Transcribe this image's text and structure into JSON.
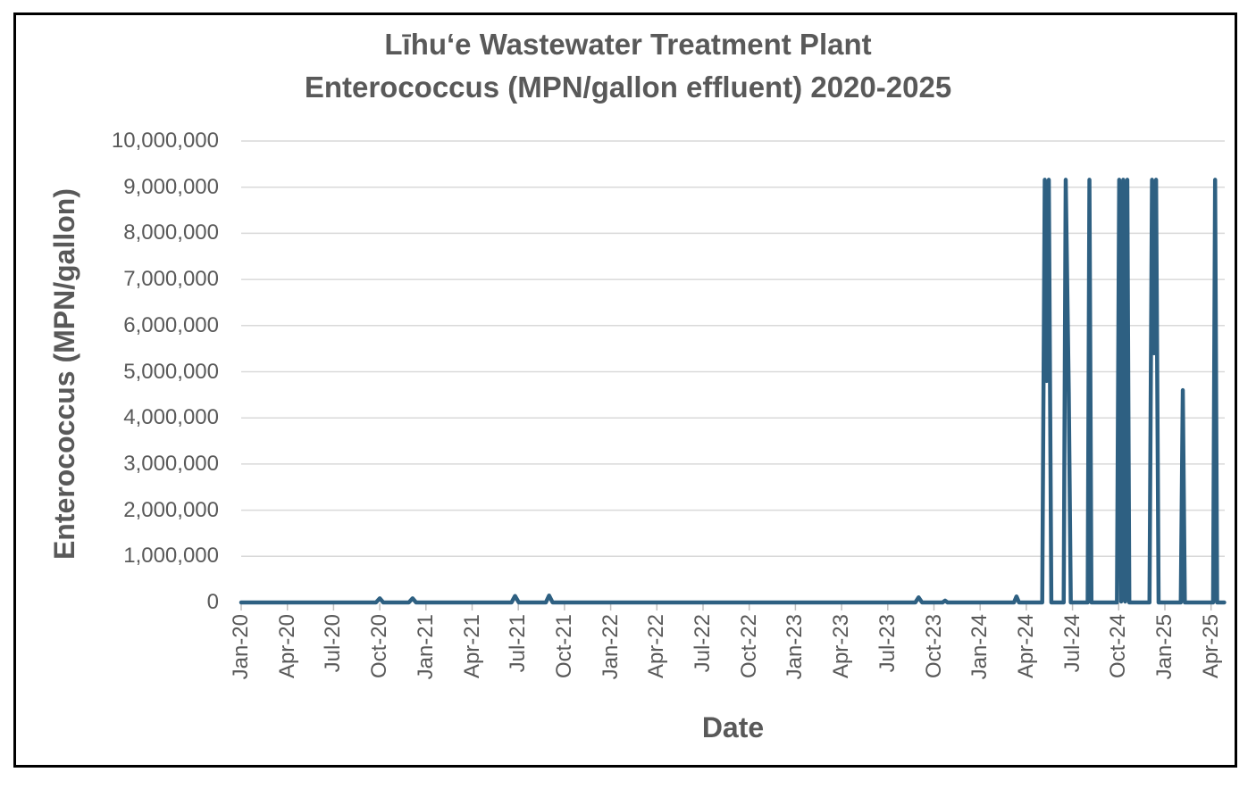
{
  "chart_title": {
    "line1": "Līhuʻe Wastewater Treatment Plant",
    "line2": "Enterococcus (MPN/gallon effluent) 2020-2025"
  },
  "y_axis": {
    "title": "Enterococcus (MPN/gallon)",
    "tick_labels": [
      "0",
      "1,000,000",
      "2,000,000",
      "3,000,000",
      "4,000,000",
      "5,000,000",
      "6,000,000",
      "7,000,000",
      "8,000,000",
      "9,000,000",
      "10,000,000"
    ],
    "tick_values": [
      0,
      1000000,
      2000000,
      3000000,
      4000000,
      5000000,
      6000000,
      7000000,
      8000000,
      9000000,
      10000000
    ]
  },
  "x_axis": {
    "title": "Date",
    "tick_labels": [
      "Jan-20",
      "Apr-20",
      "Jul-20",
      "Oct-20",
      "Jan-21",
      "Apr-21",
      "Jul-21",
      "Oct-21",
      "Jan-22",
      "Apr-22",
      "Jul-22",
      "Oct-22",
      "Jan-23",
      "Apr-23",
      "Jul-23",
      "Oct-23",
      "Jan-24",
      "Apr-24",
      "Jul-24",
      "Oct-24",
      "Jan-25",
      "Apr-25"
    ]
  },
  "colors": {
    "line": "#2E6082",
    "gridline": "#D9D9D9",
    "tick_mark": "#BFBFBF",
    "text": "#595959",
    "frame_border": "#000000",
    "background": "#FFFFFF"
  },
  "chart_data": {
    "type": "line",
    "title": "Līhuʻe Wastewater Treatment Plant Enterococcus (MPN/gallon effluent) 2020-2025",
    "xlabel": "Date",
    "ylabel": "Enterococcus (MPN/gallon)",
    "ylim": [
      0,
      10000000
    ],
    "x_range": [
      "2020-01",
      "2025-05"
    ],
    "grid": "horizontal",
    "legend": "none",
    "series": [
      {
        "name": "Enterococcus (MPN/gallon effluent)",
        "points": [
          [
            "2020-01-01",
            0
          ],
          [
            "2020-09-24",
            0
          ],
          [
            "2020-10-01",
            90000
          ],
          [
            "2020-10-08",
            0
          ],
          [
            "2020-11-28",
            0
          ],
          [
            "2020-12-05",
            90000
          ],
          [
            "2020-12-12",
            0
          ],
          [
            "2021-06-18",
            0
          ],
          [
            "2021-06-25",
            140000
          ],
          [
            "2021-07-02",
            0
          ],
          [
            "2021-08-25",
            0
          ],
          [
            "2021-09-01",
            150000
          ],
          [
            "2021-09-08",
            0
          ],
          [
            "2023-08-25",
            0
          ],
          [
            "2023-09-01",
            110000
          ],
          [
            "2023-09-08",
            0
          ],
          [
            "2023-10-18",
            0
          ],
          [
            "2023-10-23",
            40000
          ],
          [
            "2023-10-28",
            0
          ],
          [
            "2024-03-07",
            0
          ],
          [
            "2024-03-12",
            130000
          ],
          [
            "2024-03-17",
            0
          ],
          [
            "2024-05-02",
            0
          ],
          [
            "2024-05-07",
            9160000
          ],
          [
            "2024-05-11",
            4800000
          ],
          [
            "2024-05-15",
            9160000
          ],
          [
            "2024-05-20",
            0
          ],
          [
            "2024-06-14",
            0
          ],
          [
            "2024-06-18",
            9160000
          ],
          [
            "2024-06-24",
            4550000
          ],
          [
            "2024-06-28",
            0
          ],
          [
            "2024-07-31",
            0
          ],
          [
            "2024-08-04",
            9160000
          ],
          [
            "2024-08-08",
            0
          ],
          [
            "2024-09-28",
            0
          ],
          [
            "2024-10-02",
            9160000
          ],
          [
            "2024-10-06",
            20000
          ],
          [
            "2024-10-10",
            9160000
          ],
          [
            "2024-10-14",
            20000
          ],
          [
            "2024-10-18",
            9160000
          ],
          [
            "2024-10-22",
            0
          ],
          [
            "2024-12-01",
            0
          ],
          [
            "2024-12-06",
            9160000
          ],
          [
            "2024-12-10",
            5400000
          ],
          [
            "2024-12-14",
            9160000
          ],
          [
            "2024-12-19",
            0
          ],
          [
            "2025-02-02",
            0
          ],
          [
            "2025-02-06",
            4600000
          ],
          [
            "2025-02-10",
            0
          ],
          [
            "2025-04-05",
            0
          ],
          [
            "2025-04-09",
            9160000
          ],
          [
            "2025-04-13",
            0
          ],
          [
            "2025-04-27",
            0
          ]
        ]
      }
    ]
  }
}
